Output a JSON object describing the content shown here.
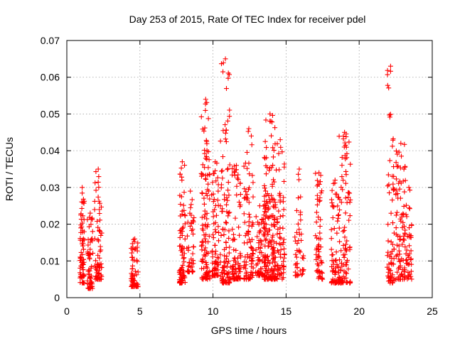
{
  "chart_data": {
    "type": "scatter",
    "title": "Day 253 of 2015, Rate Of TEC Index for receiver pdel",
    "xlabel": "GPS time / hours",
    "ylabel": "ROTI / TECUs",
    "xlim": [
      0,
      25
    ],
    "ylim": [
      0,
      0.07
    ],
    "x_ticks": [
      "0",
      "5",
      "10",
      "15",
      "20",
      "25"
    ],
    "y_ticks": [
      "0",
      "0.01",
      "0.02",
      "0.03",
      "0.04",
      "0.05",
      "0.06",
      "0.07"
    ],
    "grid": true,
    "marker": "+",
    "color": "#ff0000",
    "clusters": [
      {
        "x": [
          0.9,
          1.2
        ],
        "y": [
          0.004,
          0.03
        ],
        "n": 70
      },
      {
        "x": [
          1.4,
          1.8
        ],
        "y": [
          0.0025,
          0.023
        ],
        "n": 55
      },
      {
        "x": [
          1.9,
          2.4
        ],
        "y": [
          0.005,
          0.035
        ],
        "n": 70
      },
      {
        "x": [
          4.4,
          4.9
        ],
        "y": [
          0.003,
          0.016
        ],
        "n": 60
      },
      {
        "x": [
          7.7,
          8.1
        ],
        "y": [
          0.004,
          0.037
        ],
        "n": 80
      },
      {
        "x": [
          8.2,
          8.7
        ],
        "y": [
          0.007,
          0.029
        ],
        "n": 45
      },
      {
        "x": [
          9.2,
          9.8
        ],
        "y": [
          0.005,
          0.054
        ],
        "n": 110
      },
      {
        "x": [
          9.9,
          10.4
        ],
        "y": [
          0.006,
          0.037
        ],
        "n": 70
      },
      {
        "x": [
          10.5,
          11.2
        ],
        "y": [
          0.004,
          0.065
        ],
        "n": 110
      },
      {
        "x": [
          11.3,
          11.9
        ],
        "y": [
          0.005,
          0.036
        ],
        "n": 80
      },
      {
        "x": [
          12.1,
          12.8
        ],
        "y": [
          0.005,
          0.046
        ],
        "n": 90
      },
      {
        "x": [
          12.9,
          13.5
        ],
        "y": [
          0.006,
          0.025
        ],
        "n": 60
      },
      {
        "x": [
          13.5,
          14.3
        ],
        "y": [
          0.005,
          0.05
        ],
        "n": 180
      },
      {
        "x": [
          14.3,
          14.9
        ],
        "y": [
          0.005,
          0.043
        ],
        "n": 70
      },
      {
        "x": [
          15.6,
          16.2
        ],
        "y": [
          0.006,
          0.035
        ],
        "n": 45
      },
      {
        "x": [
          17.0,
          17.5
        ],
        "y": [
          0.005,
          0.034
        ],
        "n": 60
      },
      {
        "x": [
          18.1,
          18.6
        ],
        "y": [
          0.004,
          0.032
        ],
        "n": 70
      },
      {
        "x": [
          18.6,
          19.4
        ],
        "y": [
          0.004,
          0.045
        ],
        "n": 100
      },
      {
        "x": [
          21.9,
          22.4
        ],
        "y": [
          0.004,
          0.063
        ],
        "n": 70
      },
      {
        "x": [
          22.5,
          23.2
        ],
        "y": [
          0.005,
          0.042
        ],
        "n": 90
      },
      {
        "x": [
          23.2,
          23.6
        ],
        "y": [
          0.005,
          0.03
        ],
        "n": 40
      }
    ]
  }
}
